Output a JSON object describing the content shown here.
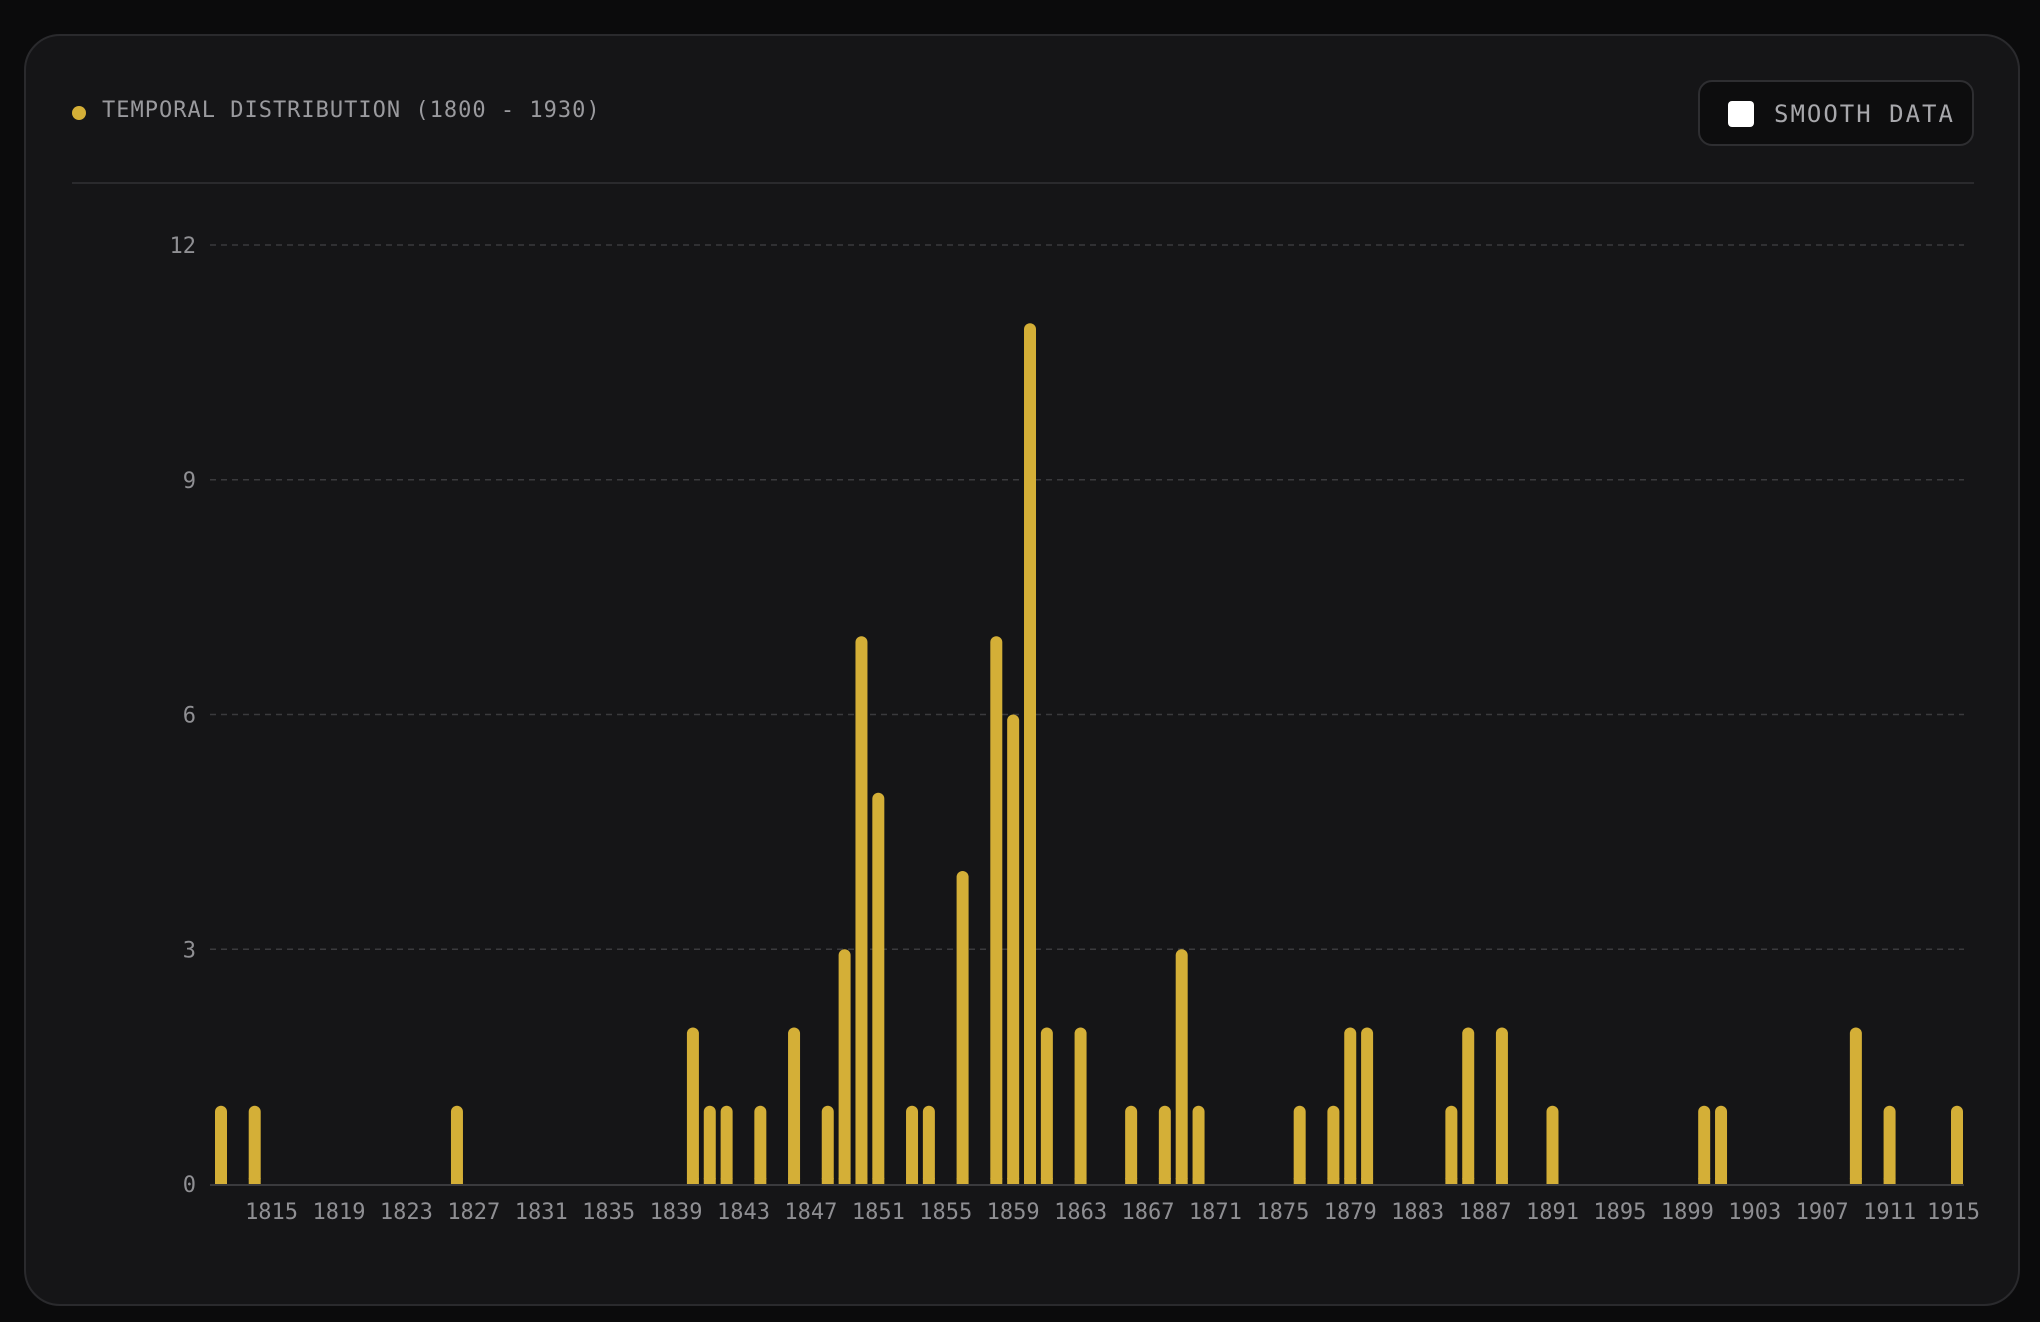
{
  "header": {
    "title": "TEMPORAL DISTRIBUTION (1800 - 1930)",
    "smooth_label": "SMOOTH DATA",
    "smooth_checked": false
  },
  "colors": {
    "bar": "#d4af37",
    "background": "#151517",
    "grid": "#3a3a3d",
    "text": "#8f8f93"
  },
  "chart_data": {
    "type": "bar",
    "title": "TEMPORAL DISTRIBUTION (1800 - 1930)",
    "xlabel": "",
    "ylabel": "",
    "ylim": [
      0,
      12
    ],
    "y_ticks": [
      0,
      3,
      6,
      9,
      12
    ],
    "x_ticks": [
      "1815",
      "1819",
      "1823",
      "1827",
      "1831",
      "1835",
      "1839",
      "1843",
      "1847",
      "1851",
      "1855",
      "1859",
      "1863",
      "1867",
      "1871",
      "1875",
      "1879",
      "1883",
      "1887",
      "1891",
      "1895",
      "1899",
      "1903",
      "1907",
      "1911",
      "1915"
    ],
    "grid": true,
    "x_range": [
      1812,
      1915
    ],
    "years": [
      1812,
      1814,
      1826,
      1840,
      1841,
      1842,
      1844,
      1846,
      1848,
      1849,
      1850,
      1851,
      1853,
      1854,
      1856,
      1858,
      1859,
      1860,
      1861,
      1863,
      1866,
      1868,
      1869,
      1870,
      1876,
      1878,
      1879,
      1880,
      1885,
      1886,
      1888,
      1891,
      1900,
      1901,
      1909,
      1911,
      1915
    ],
    "values": [
      1,
      1,
      1,
      2,
      1,
      1,
      1,
      2,
      1,
      3,
      7,
      5,
      1,
      1,
      4,
      7,
      6,
      11,
      2,
      2,
      1,
      1,
      3,
      1,
      1,
      1,
      2,
      2,
      1,
      2,
      2,
      1,
      1,
      1,
      2,
      1,
      1
    ]
  }
}
